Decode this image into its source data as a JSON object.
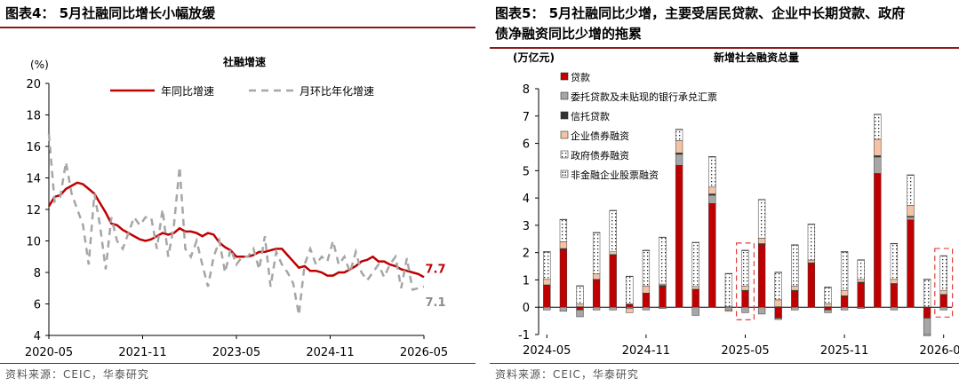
{
  "left": {
    "figure_title": "图表4： 5月社融同比增长小幅放缓",
    "source": "资料来源：CEIC，华泰研究",
    "chart_data": {
      "type": "line",
      "title": "社融增速",
      "unit_label": "(%)",
      "x_ticks": [
        "2020-05",
        "2021-11",
        "2023-05",
        "2024-11",
        "2026-05"
      ],
      "ylim": [
        4,
        20
      ],
      "y_ticks": [
        4,
        6,
        8,
        10,
        12,
        14,
        16,
        18,
        20
      ],
      "legend_position": "top",
      "series": [
        {
          "name": "年同比增速",
          "color": "#c00000",
          "dash": false,
          "end_label": "7.7",
          "values": [
            12.2,
            12.8,
            12.9,
            13.3,
            13.5,
            13.7,
            13.6,
            13.3,
            13.0,
            12.4,
            11.8,
            11.1,
            11.0,
            10.7,
            10.5,
            10.3,
            10.1,
            10.0,
            10.1,
            10.3,
            10.5,
            10.4,
            10.5,
            10.8,
            10.6,
            10.6,
            10.5,
            10.3,
            10.5,
            10.4,
            9.9,
            9.6,
            9.4,
            9.0,
            9.0,
            9.0,
            9.1,
            9.3,
            9.3,
            9.4,
            9.5,
            9.5,
            9.1,
            8.7,
            8.3,
            8.4,
            8.1,
            8.1,
            8.0,
            7.8,
            7.8,
            8.0,
            8.0,
            8.2,
            8.4,
            8.7,
            8.8,
            9.0,
            8.7,
            8.7,
            8.5,
            8.4,
            8.2,
            8.1,
            8.0,
            7.9,
            7.7
          ]
        },
        {
          "name": "月环比年化增速",
          "color": "#a6a6a6",
          "dash": true,
          "end_label": "7.1",
          "values": [
            16.8,
            12.5,
            12.8,
            15.0,
            13.0,
            12.0,
            11.0,
            8.5,
            13.0,
            11.0,
            8.2,
            11.5,
            10.0,
            9.5,
            10.5,
            11.5,
            11.0,
            11.5,
            11.5,
            9.5,
            12.0,
            9.0,
            11.0,
            14.7,
            9.5,
            9.0,
            10.0,
            8.5,
            7.1,
            9.0,
            10.0,
            8.0,
            9.5,
            8.5,
            9.0,
            9.0,
            9.5,
            8.2,
            10.3,
            7.1,
            9.3,
            8.5,
            8.0,
            7.3,
            5.3,
            8.5,
            9.5,
            8.5,
            9.0,
            8.7,
            10.0,
            8.5,
            9.0,
            8.0,
            9.3,
            8.0,
            7.5,
            8.0,
            8.5,
            7.7,
            8.5,
            9.0,
            7.0,
            8.9,
            6.9,
            7.0,
            7.1
          ]
        }
      ]
    }
  },
  "right": {
    "figure_title_line1": "图表5： 5月社融同比少增，主要受居民贷款、企业中长期贷款、政府",
    "figure_title_line2": "债净融资同比少增的拖累",
    "source": "资料来源：CEIC，华泰研究",
    "chart_data": {
      "type": "bar",
      "stacked": true,
      "title": "新增社会融资总量",
      "unit_label": "(万亿元)",
      "ylim": [
        -1,
        8
      ],
      "y_ticks": [
        -1,
        0,
        1,
        2,
        3,
        4,
        5,
        6,
        7,
        8
      ],
      "x_ticks": [
        "2024-05",
        "2024-11",
        "2025-05",
        "2025-11",
        "2026-05"
      ],
      "legend_position": "top-left",
      "highlighted": [
        "2025-05",
        "2026-05"
      ],
      "categories": [
        "2024-05",
        "2024-06",
        "2024-07",
        "2024-08",
        "2024-09",
        "2024-10",
        "2024-11",
        "2024-12",
        "2025-01",
        "2025-02",
        "2025-03",
        "2025-04",
        "2025-05",
        "2025-06",
        "2025-07",
        "2025-08",
        "2025-09",
        "2025-10",
        "2025-11",
        "2025-12",
        "2026-01",
        "2026-02",
        "2026-03",
        "2026-04",
        "2026-05"
      ],
      "series": [
        {
          "name": "贷款",
          "color": "#c00000",
          "values": [
            0.8,
            2.1,
            -0.1,
            1.0,
            1.9,
            0.1,
            0.5,
            0.75,
            5.2,
            0.65,
            3.8,
            0.0,
            0.6,
            2.3,
            -0.4,
            0.6,
            1.6,
            -0.1,
            0.4,
            0.9,
            4.9,
            0.85,
            3.2,
            -0.4,
            0.45
          ]
        },
        {
          "name": "委托贷款及未贴现的银行承兑汇票",
          "color": "#a6a6a6",
          "values": [
            -0.1,
            -0.15,
            -0.25,
            -0.1,
            -0.1,
            -0.05,
            -0.1,
            -0.05,
            0.4,
            -0.3,
            0.3,
            -0.1,
            -0.2,
            -0.25,
            -0.05,
            -0.1,
            0.0,
            -0.1,
            -0.1,
            -0.05,
            0.6,
            -0.1,
            0.1,
            -0.6,
            -0.1
          ]
        },
        {
          "name": "信托贷款",
          "color": "#333333",
          "values": [
            0.02,
            0.05,
            0.02,
            0.02,
            0.03,
            0.02,
            0.02,
            0.05,
            0.05,
            0.01,
            0.05,
            0.02,
            0.02,
            0.03,
            0.02,
            0.02,
            0.03,
            0.02,
            0.02,
            0.02,
            0.05,
            0.02,
            0.03,
            0.01,
            0.02
          ]
        },
        {
          "name": "企业债券融资",
          "color": "#f4c3a5",
          "values": [
            0.2,
            0.25,
            0.1,
            0.2,
            0.1,
            -0.15,
            0.25,
            0.05,
            0.45,
            0.1,
            0.25,
            -0.05,
            0.15,
            0.2,
            0.25,
            0.15,
            0.1,
            0.1,
            0.2,
            0.1,
            0.6,
            0.15,
            0.4,
            -0.05,
            0.15
          ]
        },
        {
          "name": "政府债券融资",
          "color": "#ffffff",
          "values": [
            1.0,
            0.8,
            0.65,
            1.5,
            1.5,
            1.0,
            1.3,
            1.7,
            0.4,
            1.6,
            1.1,
            1.2,
            1.3,
            1.4,
            1.0,
            1.5,
            1.3,
            0.6,
            1.4,
            0.7,
            0.9,
            1.3,
            1.1,
            1.0,
            1.25
          ]
        },
        {
          "name": "非金融企业股票融资",
          "color": "#ffffff",
          "values": [
            0.02,
            0.02,
            0.02,
            0.02,
            0.02,
            0.02,
            0.02,
            0.02,
            0.02,
            0.02,
            0.02,
            0.02,
            0.02,
            0.02,
            0.02,
            0.02,
            0.02,
            0.02,
            0.02,
            0.02,
            0.02,
            0.02,
            0.02,
            0.02,
            0.02
          ]
        }
      ]
    }
  }
}
